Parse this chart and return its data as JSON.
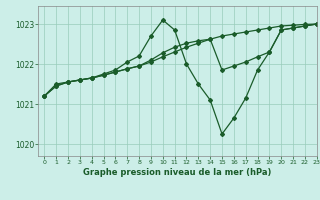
{
  "title": "Graphe pression niveau de la mer (hPa)",
  "background_color": "#cceee8",
  "grid_color": "#99ccbb",
  "line_color": "#1a5c2a",
  "xlim": [
    -0.5,
    23
  ],
  "ylim": [
    1019.7,
    1023.45
  ],
  "yticks": [
    1020,
    1021,
    1022,
    1023
  ],
  "xticks": [
    0,
    1,
    2,
    3,
    4,
    5,
    6,
    7,
    8,
    9,
    10,
    11,
    12,
    13,
    14,
    15,
    16,
    17,
    18,
    19,
    20,
    21,
    22,
    23
  ],
  "series1": [
    [
      0,
      1021.2
    ],
    [
      1,
      1021.5
    ],
    [
      2,
      1021.55
    ],
    [
      3,
      1021.6
    ],
    [
      4,
      1021.65
    ],
    [
      5,
      1021.75
    ],
    [
      6,
      1021.85
    ],
    [
      7,
      1022.05
    ],
    [
      8,
      1022.2
    ],
    [
      9,
      1022.7
    ],
    [
      10,
      1023.1
    ],
    [
      11,
      1022.85
    ],
    [
      12,
      1022.0
    ],
    [
      13,
      1021.5
    ],
    [
      14,
      1021.1
    ],
    [
      15,
      1020.25
    ],
    [
      16,
      1020.65
    ],
    [
      17,
      1021.15
    ],
    [
      18,
      1021.85
    ],
    [
      19,
      1022.3
    ],
    [
      20,
      1022.85
    ],
    [
      21,
      1022.9
    ],
    [
      22,
      1022.95
    ],
    [
      23,
      1023.0
    ]
  ],
  "series2": [
    [
      0,
      1021.2
    ],
    [
      1,
      1021.45
    ],
    [
      2,
      1021.55
    ],
    [
      3,
      1021.6
    ],
    [
      4,
      1021.65
    ],
    [
      5,
      1021.72
    ],
    [
      6,
      1021.8
    ],
    [
      7,
      1021.88
    ],
    [
      8,
      1021.95
    ],
    [
      9,
      1022.05
    ],
    [
      10,
      1022.18
    ],
    [
      11,
      1022.3
    ],
    [
      12,
      1022.42
    ],
    [
      13,
      1022.52
    ],
    [
      14,
      1022.62
    ],
    [
      15,
      1022.7
    ],
    [
      16,
      1022.75
    ],
    [
      17,
      1022.8
    ],
    [
      18,
      1022.85
    ],
    [
      19,
      1022.9
    ],
    [
      20,
      1022.95
    ],
    [
      21,
      1022.97
    ],
    [
      22,
      1022.99
    ],
    [
      23,
      1023.0
    ]
  ],
  "series3": [
    [
      0,
      1021.2
    ],
    [
      1,
      1021.45
    ],
    [
      2,
      1021.55
    ],
    [
      3,
      1021.6
    ],
    [
      4,
      1021.65
    ],
    [
      5,
      1021.72
    ],
    [
      6,
      1021.8
    ],
    [
      7,
      1021.88
    ],
    [
      8,
      1021.95
    ],
    [
      9,
      1022.1
    ],
    [
      10,
      1022.28
    ],
    [
      11,
      1022.42
    ],
    [
      12,
      1022.52
    ],
    [
      13,
      1022.58
    ],
    [
      14,
      1022.62
    ],
    [
      15,
      1021.85
    ],
    [
      16,
      1021.95
    ],
    [
      17,
      1022.05
    ],
    [
      18,
      1022.18
    ],
    [
      19,
      1022.3
    ],
    [
      20,
      1022.85
    ],
    [
      21,
      1022.9
    ],
    [
      22,
      1022.95
    ],
    [
      23,
      1023.0
    ]
  ]
}
